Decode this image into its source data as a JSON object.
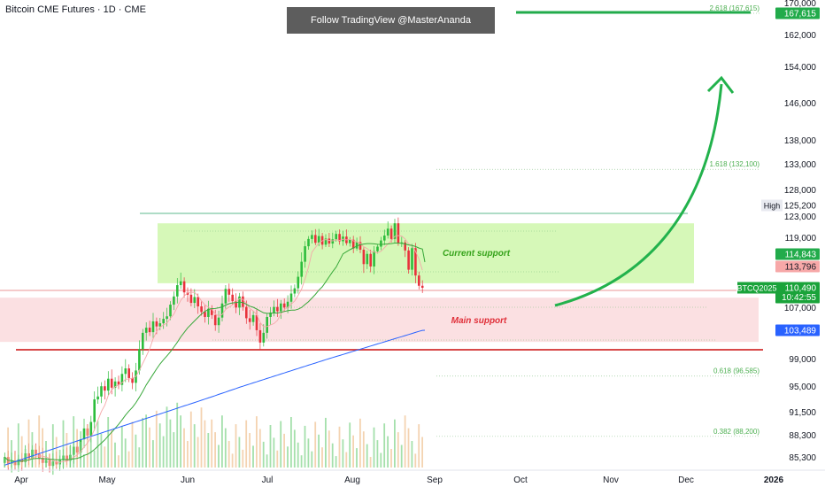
{
  "header": {
    "title": "Bitcoin CME Futures · 1D · CME",
    "banner": "Follow TradingView @MasterAnanda"
  },
  "chart_data": {
    "type": "candlestick",
    "symbol": "BTCQ2025",
    "x_ticks": [
      "Apr",
      "May",
      "Jun",
      "Jul",
      "Aug",
      "Sep",
      "Oct",
      "Nov",
      "Dec",
      "2026"
    ],
    "y_ticks": [
      170000,
      162000,
      154000,
      146000,
      138000,
      133000,
      128000,
      123000,
      119000,
      107000,
      99000,
      95000,
      91500,
      88300,
      85300
    ],
    "price_tags": [
      {
        "label": "167,615",
        "value": 167615,
        "color": "#22ab4b",
        "text_color": "#ffffff"
      },
      {
        "label": "125,200",
        "value": 125200,
        "color": "#ffffff",
        "text_color": "#131722",
        "prefix": "High"
      },
      {
        "label": "114,843",
        "value": 114843,
        "color": "#22ab4b",
        "text_color": "#ffffff"
      },
      {
        "label": "113,796",
        "value": 113796,
        "color": "#f7a8a8",
        "text_color": "#131722"
      },
      {
        "label": "110,490",
        "value": 110490,
        "color": "#1aa33a",
        "text_color": "#ffffff",
        "sub": "10:42:55",
        "symbol_tag": "BTCQ2025"
      },
      {
        "label": "103,489",
        "value": 103489,
        "color": "#2962ff",
        "text_color": "#ffffff"
      }
    ],
    "fib_levels": [
      {
        "label": "2.618 (167,615)",
        "value": 167615
      },
      {
        "label": "1.618 (132,100)",
        "value": 132100
      },
      {
        "label": "0.618 (96,585)",
        "value": 96585
      },
      {
        "label": "0.382 (88,200)",
        "value": 88200
      }
    ],
    "zones": [
      {
        "label": "Current support",
        "from": 111200,
        "to": 121800,
        "color": "#c8f5a0"
      },
      {
        "label": "Main support",
        "from": 101700,
        "to": 108800,
        "color": "#fadadd"
      }
    ],
    "series": [
      {
        "open": 84600,
        "close": 85400
      },
      {
        "open": 85400,
        "close": 84500
      },
      {
        "open": 84500,
        "close": 84900
      },
      {
        "open": 84900,
        "close": 84300
      },
      {
        "open": 84300,
        "close": 85100
      },
      {
        "open": 85100,
        "close": 84700
      },
      {
        "open": 84700,
        "close": 85900
      },
      {
        "open": 85900,
        "close": 85200
      },
      {
        "open": 85200,
        "close": 86400
      },
      {
        "open": 86400,
        "close": 85800
      },
      {
        "open": 85800,
        "close": 85300
      },
      {
        "open": 85300,
        "close": 84600
      },
      {
        "open": 84600,
        "close": 85000
      },
      {
        "open": 85000,
        "close": 84200
      },
      {
        "open": 84200,
        "close": 84800
      },
      {
        "open": 84800,
        "close": 84400
      },
      {
        "open": 84400,
        "close": 85000
      },
      {
        "open": 85000,
        "close": 85600
      },
      {
        "open": 85600,
        "close": 84900
      },
      {
        "open": 84900,
        "close": 85700
      },
      {
        "open": 85700,
        "close": 86800
      },
      {
        "open": 86800,
        "close": 86000
      },
      {
        "open": 86000,
        "close": 87800
      },
      {
        "open": 87800,
        "close": 89300
      },
      {
        "open": 89300,
        "close": 88300
      },
      {
        "open": 88300,
        "close": 90200
      },
      {
        "open": 90200,
        "close": 93300
      },
      {
        "open": 93300,
        "close": 93700
      },
      {
        "open": 93700,
        "close": 95100
      },
      {
        "open": 95100,
        "close": 94500
      },
      {
        "open": 94500,
        "close": 96200
      },
      {
        "open": 96200,
        "close": 94900
      },
      {
        "open": 94900,
        "close": 95800
      },
      {
        "open": 95800,
        "close": 95300
      },
      {
        "open": 95300,
        "close": 96900
      },
      {
        "open": 96900,
        "close": 97700
      },
      {
        "open": 97700,
        "close": 96300
      },
      {
        "open": 96300,
        "close": 95600
      },
      {
        "open": 95600,
        "close": 97400
      },
      {
        "open": 97400,
        "close": 100600
      },
      {
        "open": 100600,
        "close": 103100
      },
      {
        "open": 103100,
        "close": 103900
      },
      {
        "open": 103900,
        "close": 103200
      },
      {
        "open": 103200,
        "close": 104900
      },
      {
        "open": 104900,
        "close": 104100
      },
      {
        "open": 104100,
        "close": 104600
      },
      {
        "open": 104600,
        "close": 105300
      },
      {
        "open": 105300,
        "close": 105700
      },
      {
        "open": 105700,
        "close": 107600
      },
      {
        "open": 107600,
        "close": 109000
      },
      {
        "open": 109000,
        "close": 110900
      },
      {
        "open": 110900,
        "close": 111500
      },
      {
        "open": 111500,
        "close": 109700
      },
      {
        "open": 109700,
        "close": 109300
      },
      {
        "open": 109300,
        "close": 107900
      },
      {
        "open": 107900,
        "close": 108900
      },
      {
        "open": 108900,
        "close": 107300
      },
      {
        "open": 107300,
        "close": 106400
      },
      {
        "open": 106400,
        "close": 105600
      },
      {
        "open": 105600,
        "close": 106900
      },
      {
        "open": 106900,
        "close": 105900
      },
      {
        "open": 105900,
        "close": 104300
      },
      {
        "open": 104300,
        "close": 105500
      },
      {
        "open": 105500,
        "close": 107800
      },
      {
        "open": 107800,
        "close": 110300
      },
      {
        "open": 110300,
        "close": 109300
      },
      {
        "open": 109300,
        "close": 108200
      },
      {
        "open": 108200,
        "close": 107100
      },
      {
        "open": 107100,
        "close": 109000
      },
      {
        "open": 109000,
        "close": 107200
      },
      {
        "open": 107200,
        "close": 105400
      },
      {
        "open": 105400,
        "close": 104800
      },
      {
        "open": 104800,
        "close": 105900
      },
      {
        "open": 105900,
        "close": 103500
      },
      {
        "open": 103500,
        "close": 101600
      },
      {
        "open": 101600,
        "close": 103100
      },
      {
        "open": 103100,
        "close": 105600
      },
      {
        "open": 105600,
        "close": 106300
      },
      {
        "open": 106300,
        "close": 107200
      },
      {
        "open": 107200,
        "close": 106500
      },
      {
        "open": 106500,
        "close": 107800
      },
      {
        "open": 107800,
        "close": 107100
      },
      {
        "open": 107100,
        "close": 108100
      },
      {
        "open": 108100,
        "close": 109500
      },
      {
        "open": 109500,
        "close": 110400
      },
      {
        "open": 110400,
        "close": 112200
      },
      {
        "open": 112200,
        "close": 114200
      },
      {
        "open": 114200,
        "close": 116900
      },
      {
        "open": 116900,
        "close": 118800
      },
      {
        "open": 118800,
        "close": 119600
      },
      {
        "open": 119600,
        "close": 117800
      },
      {
        "open": 117800,
        "close": 119400
      },
      {
        "open": 119400,
        "close": 117300
      },
      {
        "open": 117300,
        "close": 118900
      },
      {
        "open": 118900,
        "close": 117600
      },
      {
        "open": 117600,
        "close": 118700
      },
      {
        "open": 118700,
        "close": 119800
      },
      {
        "open": 119800,
        "close": 118200
      },
      {
        "open": 118200,
        "close": 119300
      },
      {
        "open": 119300,
        "close": 117700
      },
      {
        "open": 117700,
        "close": 118600
      },
      {
        "open": 118600,
        "close": 116300
      },
      {
        "open": 116300,
        "close": 118000
      },
      {
        "open": 118000,
        "close": 116000
      },
      {
        "open": 116000,
        "close": 114000
      },
      {
        "open": 114000,
        "close": 114900
      },
      {
        "open": 114900,
        "close": 113800
      },
      {
        "open": 113800,
        "close": 115600
      },
      {
        "open": 115600,
        "close": 116800
      },
      {
        "open": 116800,
        "close": 118400
      },
      {
        "open": 118400,
        "close": 119500
      },
      {
        "open": 119500,
        "close": 120800
      },
      {
        "open": 120800,
        "close": 118800
      },
      {
        "open": 118800,
        "close": 121800
      },
      {
        "open": 121800,
        "close": 117600
      },
      {
        "open": 117600,
        "close": 117900
      },
      {
        "open": 117900,
        "close": 115800
      },
      {
        "open": 115800,
        "close": 113300
      },
      {
        "open": 113300,
        "close": 116400
      },
      {
        "open": 116400,
        "close": 112400
      },
      {
        "open": 112400,
        "close": 110800
      },
      {
        "open": 110800,
        "close": 110490
      }
    ]
  }
}
